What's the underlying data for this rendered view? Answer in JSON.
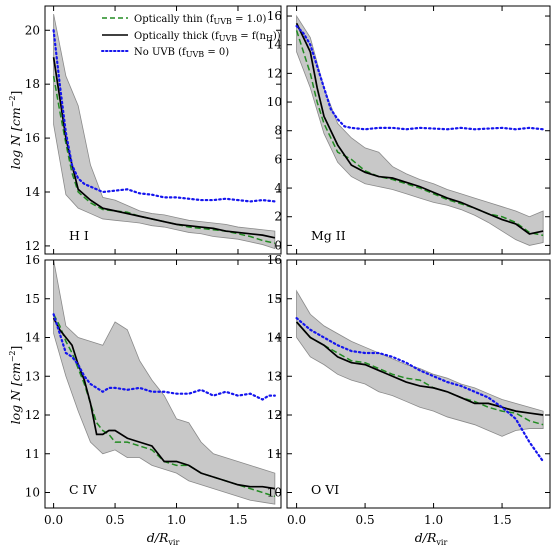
{
  "figure": {
    "x_axis_label": "d/R",
    "x_axis_label_sub": "vir",
    "y_axis_label": "log N [cm",
    "y_axis_label_sup": "−2",
    "y_axis_label_close": "]"
  },
  "legend": [
    {
      "label": "Optically thin (f",
      "label_sub": "UVB",
      "label_rest": " = 1.0)",
      "color": "#228B22",
      "style": "dashed"
    },
    {
      "label": "Optically thick (f",
      "label_sub": "UVB",
      "label_mid": " = f(n",
      "label_sub2": "H",
      "label_rest": "))",
      "color": "#000000",
      "style": "solid"
    },
    {
      "label": "No UVB (f",
      "label_sub": "UVB",
      "label_rest": " = 0)",
      "color": "#1515ee",
      "style": "dotted"
    }
  ],
  "colors": {
    "thin": "#228B22",
    "thick": "#000000",
    "no_uvb": "#1515ee",
    "band": "#c8c8c8"
  },
  "chart_data": [
    {
      "type": "line",
      "panel": "H I",
      "xlim": [
        -0.07,
        1.85
      ],
      "ylim": [
        11.7,
        20.9
      ],
      "xticks": [
        0.0,
        0.5,
        1.0,
        1.5
      ],
      "yticks": [
        12,
        14,
        16,
        18,
        20
      ],
      "series": [
        {
          "key": "thin",
          "x": [
            0.0,
            0.05,
            0.1,
            0.15,
            0.2,
            0.3,
            0.4,
            0.5,
            0.6,
            0.7,
            0.8,
            0.9,
            1.0,
            1.1,
            1.2,
            1.3,
            1.4,
            1.5,
            1.6,
            1.7,
            1.8
          ],
          "y": [
            18.3,
            17.0,
            15.8,
            14.7,
            14.0,
            13.6,
            13.35,
            13.3,
            13.25,
            13.1,
            13.0,
            12.9,
            12.8,
            12.7,
            12.65,
            12.6,
            12.55,
            12.45,
            12.35,
            12.2,
            12.1
          ]
        },
        {
          "key": "thick",
          "x": [
            0.0,
            0.05,
            0.1,
            0.15,
            0.2,
            0.3,
            0.4,
            0.5,
            0.6,
            0.7,
            0.8,
            0.9,
            1.0,
            1.1,
            1.2,
            1.3,
            1.4,
            1.5,
            1.6,
            1.7,
            1.8
          ],
          "y": [
            19.0,
            17.5,
            16.0,
            15.0,
            14.1,
            13.7,
            13.4,
            13.3,
            13.2,
            13.1,
            13.0,
            12.9,
            12.8,
            12.75,
            12.7,
            12.65,
            12.55,
            12.5,
            12.45,
            12.4,
            12.3
          ]
        },
        {
          "key": "no_uvb",
          "x": [
            0.0,
            0.05,
            0.1,
            0.15,
            0.2,
            0.25,
            0.3,
            0.4,
            0.5,
            0.6,
            0.7,
            0.8,
            0.9,
            1.0,
            1.1,
            1.2,
            1.3,
            1.4,
            1.5,
            1.6,
            1.7,
            1.8
          ],
          "y": [
            20.0,
            18.0,
            16.2,
            15.0,
            14.5,
            14.3,
            14.2,
            14.0,
            14.05,
            14.1,
            13.95,
            13.9,
            13.8,
            13.8,
            13.75,
            13.7,
            13.7,
            13.75,
            13.7,
            13.65,
            13.7,
            13.65
          ]
        },
        {
          "key": "band_hi",
          "x": [
            0.0,
            0.1,
            0.2,
            0.3,
            0.4,
            0.5,
            0.6,
            0.7,
            0.8,
            0.9,
            1.0,
            1.1,
            1.2,
            1.3,
            1.4,
            1.5,
            1.6,
            1.7,
            1.8
          ],
          "y": [
            20.6,
            18.3,
            17.2,
            15.0,
            13.8,
            13.7,
            13.5,
            13.3,
            13.2,
            13.15,
            13.05,
            12.95,
            12.9,
            12.85,
            12.8,
            12.7,
            12.65,
            12.6,
            12.55
          ]
        },
        {
          "key": "band_lo",
          "x": [
            0.0,
            0.1,
            0.2,
            0.3,
            0.4,
            0.5,
            0.6,
            0.7,
            0.8,
            0.9,
            1.0,
            1.1,
            1.2,
            1.3,
            1.4,
            1.5,
            1.6,
            1.7,
            1.8
          ],
          "y": [
            16.5,
            13.9,
            13.4,
            13.2,
            13.0,
            12.95,
            12.9,
            12.85,
            12.75,
            12.7,
            12.6,
            12.5,
            12.45,
            12.35,
            12.3,
            12.25,
            12.15,
            12.05,
            11.9
          ]
        }
      ]
    },
    {
      "type": "line",
      "panel": "Mg II",
      "xlim": [
        -0.07,
        1.85
      ],
      "ylim": [
        -0.6,
        16.7
      ],
      "xticks": [
        0.0,
        0.5,
        1.0,
        1.5
      ],
      "yticks": [
        0,
        2,
        4,
        6,
        8,
        10,
        12,
        14,
        16
      ],
      "series": [
        {
          "key": "thin",
          "x": [
            0.0,
            0.05,
            0.1,
            0.15,
            0.2,
            0.3,
            0.4,
            0.5,
            0.6,
            0.7,
            0.8,
            0.9,
            1.0,
            1.1,
            1.2,
            1.3,
            1.4,
            1.5,
            1.6,
            1.7,
            1.8
          ],
          "y": [
            15.0,
            13.5,
            12.0,
            10.0,
            8.5,
            6.5,
            6.0,
            5.2,
            4.8,
            4.6,
            4.3,
            4.0,
            3.6,
            3.2,
            2.9,
            2.6,
            2.2,
            2.0,
            1.6,
            0.9,
            0.7
          ]
        },
        {
          "key": "thick",
          "x": [
            0.0,
            0.05,
            0.1,
            0.15,
            0.2,
            0.25,
            0.3,
            0.4,
            0.5,
            0.6,
            0.7,
            0.8,
            0.9,
            1.0,
            1.1,
            1.2,
            1.3,
            1.4,
            1.5,
            1.6,
            1.7,
            1.8
          ],
          "y": [
            15.5,
            14.5,
            13.5,
            11.0,
            9.0,
            8.0,
            7.0,
            5.6,
            5.1,
            4.8,
            4.7,
            4.4,
            4.1,
            3.7,
            3.3,
            3.0,
            2.6,
            2.2,
            1.8,
            1.5,
            0.8,
            1.0
          ]
        },
        {
          "key": "no_uvb",
          "x": [
            0.0,
            0.05,
            0.1,
            0.15,
            0.2,
            0.25,
            0.3,
            0.35,
            0.4,
            0.5,
            0.6,
            0.7,
            0.8,
            0.9,
            1.0,
            1.1,
            1.2,
            1.3,
            1.4,
            1.5,
            1.6,
            1.7,
            1.8
          ],
          "y": [
            15.3,
            14.8,
            14.0,
            12.5,
            11.0,
            9.5,
            8.8,
            8.3,
            8.2,
            8.1,
            8.2,
            8.2,
            8.1,
            8.2,
            8.15,
            8.1,
            8.2,
            8.1,
            8.15,
            8.2,
            8.1,
            8.2,
            8.1
          ]
        },
        {
          "key": "band_hi",
          "x": [
            0.0,
            0.1,
            0.2,
            0.3,
            0.4,
            0.5,
            0.6,
            0.7,
            0.8,
            0.9,
            1.0,
            1.1,
            1.2,
            1.3,
            1.4,
            1.5,
            1.6,
            1.7,
            1.8
          ],
          "y": [
            16.0,
            14.5,
            11.0,
            8.5,
            7.5,
            6.8,
            6.5,
            5.5,
            5.0,
            4.6,
            4.3,
            3.9,
            3.6,
            3.3,
            3.0,
            2.7,
            2.4,
            2.0,
            2.4
          ]
        },
        {
          "key": "band_lo",
          "x": [
            0.0,
            0.1,
            0.2,
            0.3,
            0.4,
            0.5,
            0.6,
            0.7,
            0.8,
            0.9,
            1.0,
            1.1,
            1.2,
            1.3,
            1.4,
            1.5,
            1.6,
            1.7,
            1.8
          ],
          "y": [
            13.5,
            11.0,
            7.8,
            5.8,
            4.8,
            4.3,
            4.1,
            3.9,
            3.6,
            3.3,
            3.0,
            2.8,
            2.5,
            2.1,
            1.6,
            1.0,
            0.4,
            0.0,
            0.2
          ]
        }
      ]
    },
    {
      "type": "line",
      "panel": "C IV",
      "xlim": [
        -0.07,
        1.85
      ],
      "ylim": [
        9.6,
        16.0
      ],
      "xticks": [
        0.0,
        0.5,
        1.0,
        1.5
      ],
      "yticks": [
        10,
        11,
        12,
        13,
        14,
        15,
        16
      ],
      "series": [
        {
          "key": "thin",
          "x": [
            0.0,
            0.05,
            0.1,
            0.15,
            0.2,
            0.25,
            0.3,
            0.35,
            0.4,
            0.45,
            0.5,
            0.6,
            0.7,
            0.8,
            0.9,
            1.0,
            1.1,
            1.2,
            1.3,
            1.4,
            1.5,
            1.6,
            1.7,
            1.8
          ],
          "y": [
            14.6,
            14.3,
            13.9,
            13.6,
            13.2,
            12.8,
            12.3,
            11.8,
            11.6,
            11.5,
            11.3,
            11.3,
            11.2,
            11.1,
            10.8,
            10.7,
            10.7,
            10.5,
            10.4,
            10.3,
            10.2,
            10.1,
            10.0,
            9.9
          ]
        },
        {
          "key": "thick",
          "x": [
            0.0,
            0.05,
            0.1,
            0.15,
            0.2,
            0.25,
            0.3,
            0.35,
            0.4,
            0.45,
            0.5,
            0.6,
            0.7,
            0.8,
            0.9,
            1.0,
            1.1,
            1.2,
            1.3,
            1.4,
            1.5,
            1.6,
            1.7,
            1.8
          ],
          "y": [
            14.5,
            14.2,
            14.0,
            13.8,
            13.3,
            12.9,
            12.3,
            11.5,
            11.5,
            11.6,
            11.6,
            11.4,
            11.3,
            11.2,
            10.8,
            10.8,
            10.7,
            10.5,
            10.4,
            10.3,
            10.2,
            10.15,
            10.15,
            10.1
          ]
        },
        {
          "key": "no_uvb",
          "x": [
            0.0,
            0.05,
            0.1,
            0.15,
            0.2,
            0.25,
            0.3,
            0.35,
            0.4,
            0.45,
            0.5,
            0.6,
            0.7,
            0.8,
            0.9,
            1.0,
            1.1,
            1.2,
            1.3,
            1.4,
            1.5,
            1.6,
            1.7,
            1.75,
            1.8
          ],
          "y": [
            14.6,
            14.1,
            13.6,
            13.5,
            13.3,
            13.0,
            12.8,
            12.7,
            12.6,
            12.7,
            12.7,
            12.65,
            12.7,
            12.6,
            12.6,
            12.55,
            12.55,
            12.65,
            12.5,
            12.6,
            12.5,
            12.55,
            12.4,
            12.5,
            12.5
          ]
        },
        {
          "key": "band_hi",
          "x": [
            0.0,
            0.1,
            0.2,
            0.3,
            0.4,
            0.5,
            0.6,
            0.7,
            0.8,
            0.9,
            1.0,
            1.1,
            1.2,
            1.3,
            1.4,
            1.5,
            1.6,
            1.7,
            1.8
          ],
          "y": [
            16.0,
            14.3,
            14.0,
            13.9,
            13.8,
            14.4,
            14.2,
            13.4,
            12.9,
            12.5,
            11.9,
            11.8,
            11.3,
            11.0,
            10.9,
            10.8,
            10.7,
            10.6,
            10.5
          ]
        },
        {
          "key": "band_lo",
          "x": [
            0.0,
            0.1,
            0.2,
            0.3,
            0.4,
            0.5,
            0.6,
            0.7,
            0.8,
            0.9,
            1.0,
            1.1,
            1.2,
            1.3,
            1.4,
            1.5,
            1.6,
            1.7,
            1.8
          ],
          "y": [
            14.1,
            13.0,
            12.1,
            11.3,
            11.0,
            11.1,
            10.9,
            10.9,
            10.7,
            10.6,
            10.5,
            10.3,
            10.2,
            10.1,
            10.0,
            9.9,
            9.8,
            9.75,
            9.7
          ]
        }
      ]
    },
    {
      "type": "line",
      "panel": "O VI",
      "xlim": [
        -0.07,
        1.85
      ],
      "ylim": [
        9.6,
        16.0
      ],
      "xticks": [
        0.0,
        0.5,
        1.0,
        1.5
      ],
      "yticks": [
        10,
        11,
        12,
        13,
        14,
        15,
        16
      ],
      "series": [
        {
          "key": "thin",
          "x": [
            0.0,
            0.1,
            0.2,
            0.3,
            0.4,
            0.5,
            0.6,
            0.7,
            0.8,
            0.9,
            1.0,
            1.1,
            1.2,
            1.3,
            1.4,
            1.5,
            1.6,
            1.7,
            1.8
          ],
          "y": [
            14.4,
            14.0,
            13.8,
            13.6,
            13.4,
            13.35,
            13.2,
            13.05,
            12.95,
            12.9,
            12.7,
            12.6,
            12.45,
            12.35,
            12.2,
            12.1,
            12.05,
            11.85,
            11.75
          ]
        },
        {
          "key": "thick",
          "x": [
            0.0,
            0.1,
            0.2,
            0.3,
            0.4,
            0.5,
            0.6,
            0.7,
            0.8,
            0.9,
            1.0,
            1.1,
            1.2,
            1.3,
            1.4,
            1.5,
            1.6,
            1.7,
            1.8
          ],
          "y": [
            14.4,
            14.0,
            13.8,
            13.5,
            13.35,
            13.3,
            13.15,
            13.0,
            12.85,
            12.75,
            12.7,
            12.6,
            12.45,
            12.3,
            12.3,
            12.2,
            12.1,
            12.05,
            12.0
          ]
        },
        {
          "key": "no_uvb",
          "x": [
            0.0,
            0.1,
            0.2,
            0.3,
            0.4,
            0.5,
            0.6,
            0.7,
            0.8,
            0.9,
            1.0,
            1.1,
            1.2,
            1.3,
            1.4,
            1.5,
            1.6,
            1.7,
            1.8
          ],
          "y": [
            14.5,
            14.2,
            14.0,
            13.8,
            13.65,
            13.6,
            13.6,
            13.5,
            13.35,
            13.15,
            13.0,
            12.85,
            12.75,
            12.6,
            12.45,
            12.2,
            11.9,
            11.3,
            10.8
          ]
        },
        {
          "key": "band_hi",
          "x": [
            0.0,
            0.1,
            0.2,
            0.3,
            0.4,
            0.5,
            0.6,
            0.7,
            0.8,
            0.9,
            1.0,
            1.1,
            1.2,
            1.3,
            1.4,
            1.5,
            1.6,
            1.7,
            1.8
          ],
          "y": [
            15.2,
            14.6,
            14.3,
            14.1,
            13.9,
            13.75,
            13.6,
            13.45,
            13.3,
            13.2,
            13.05,
            12.95,
            12.8,
            12.7,
            12.55,
            12.4,
            12.3,
            12.2,
            12.1
          ]
        },
        {
          "key": "band_lo",
          "x": [
            0.0,
            0.1,
            0.2,
            0.3,
            0.4,
            0.5,
            0.6,
            0.7,
            0.8,
            0.9,
            1.0,
            1.1,
            1.2,
            1.3,
            1.4,
            1.5,
            1.6,
            1.7,
            1.8
          ],
          "y": [
            14.0,
            13.5,
            13.3,
            13.05,
            12.9,
            12.8,
            12.6,
            12.5,
            12.35,
            12.2,
            12.1,
            11.95,
            11.85,
            11.75,
            11.6,
            11.45,
            11.6,
            11.65,
            11.65
          ]
        }
      ]
    }
  ]
}
